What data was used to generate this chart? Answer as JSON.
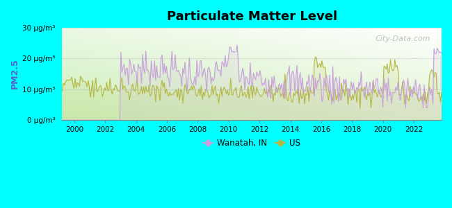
{
  "title": "Particulate Matter Level",
  "ylabel": "PM2.5",
  "background_color": "#00FFFF",
  "watermark": "City-Data.com",
  "ylim": [
    0,
    30
  ],
  "yticks": [
    0,
    10,
    20,
    30
  ],
  "ytick_labels": [
    "0 μg/m³",
    "10 μg/m³",
    "20 μg/m³",
    "30 μg/m³"
  ],
  "xlim": [
    1999.2,
    2023.8
  ],
  "xticks": [
    2000,
    2002,
    2004,
    2006,
    2008,
    2010,
    2012,
    2014,
    2016,
    2018,
    2020,
    2022
  ],
  "wanatah_color": "#c9a0dc",
  "us_color": "#b5b842",
  "legend_wanatah": "Wanatah, IN",
  "legend_us": "US"
}
